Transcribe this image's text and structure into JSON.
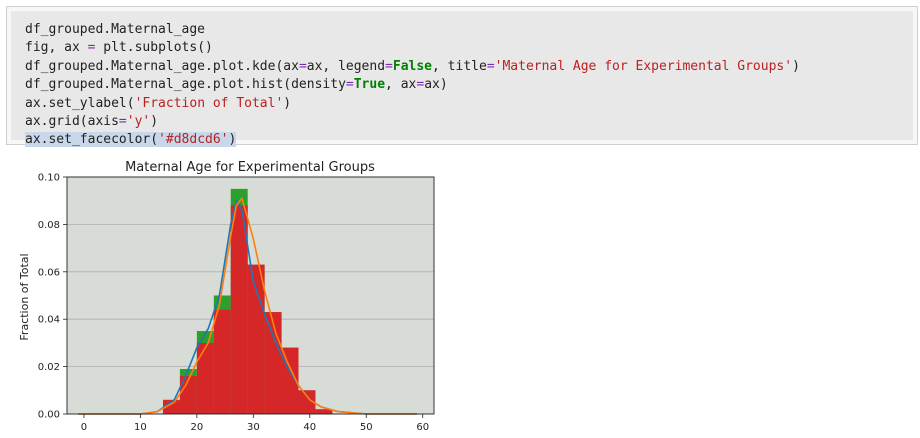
{
  "code_cell": {
    "lines": [
      [
        {
          "t": "df_grouped.Maternal_age",
          "c": "n"
        }
      ],
      [
        {
          "t": "fig, ax ",
          "c": "n"
        },
        {
          "t": "=",
          "c": "o"
        },
        {
          "t": " plt.subplots()",
          "c": "n"
        }
      ],
      [
        {
          "t": "df_grouped.Maternal_age.plot.kde(ax",
          "c": "n"
        },
        {
          "t": "=",
          "c": "o"
        },
        {
          "t": "ax, legend",
          "c": "n"
        },
        {
          "t": "=",
          "c": "o"
        },
        {
          "t": "False",
          "c": "k"
        },
        {
          "t": ", title",
          "c": "n"
        },
        {
          "t": "=",
          "c": "o"
        },
        {
          "t": "'Maternal Age for Experimental Groups'",
          "c": "s"
        },
        {
          "t": ")",
          "c": "n"
        }
      ],
      [
        {
          "t": "df_grouped.Maternal_age.plot.hist(density",
          "c": "n"
        },
        {
          "t": "=",
          "c": "o"
        },
        {
          "t": "True",
          "c": "k"
        },
        {
          "t": ", ax",
          "c": "n"
        },
        {
          "t": "=",
          "c": "o"
        },
        {
          "t": "ax)",
          "c": "n"
        }
      ],
      [
        {
          "t": "ax.set_ylabel(",
          "c": "n"
        },
        {
          "t": "'Fraction of Total'",
          "c": "s"
        },
        {
          "t": ")",
          "c": "n"
        }
      ],
      [
        {
          "t": "ax.grid(axis",
          "c": "n"
        },
        {
          "t": "=",
          "c": "o"
        },
        {
          "t": "'y'",
          "c": "s"
        },
        {
          "t": ")",
          "c": "n"
        }
      ],
      [
        {
          "t": "ax.set_facecolor(",
          "c": "n"
        },
        {
          "t": "'#d8dcd6'",
          "c": "s"
        },
        {
          "t": ")",
          "c": "n"
        }
      ]
    ]
  },
  "chart_data": {
    "type": "bar",
    "title": "Maternal Age for Experimental Groups",
    "xlabel": "",
    "ylabel": "Fraction of Total",
    "xlim": [
      -3,
      62
    ],
    "ylim": [
      0,
      0.1
    ],
    "xticks": [
      0,
      10,
      20,
      30,
      40,
      50,
      60
    ],
    "yticks": [
      "0.00",
      "0.02",
      "0.04",
      "0.06",
      "0.08",
      "0.10"
    ],
    "grid": "y",
    "facecolor": "#d8dcd6",
    "hist_series": [
      {
        "color": "#2ca02c",
        "bins": [
          {
            "x0": 14,
            "x1": 17,
            "y": 0.005
          },
          {
            "x0": 17,
            "x1": 20,
            "y": 0.019
          },
          {
            "x0": 20,
            "x1": 23,
            "y": 0.035
          },
          {
            "x0": 23,
            "x1": 26,
            "y": 0.05
          },
          {
            "x0": 26,
            "x1": 29,
            "y": 0.095
          },
          {
            "x0": 29,
            "x1": 32,
            "y": 0.063
          },
          {
            "x0": 32,
            "x1": 35,
            "y": 0.043
          },
          {
            "x0": 35,
            "x1": 38,
            "y": 0.028
          },
          {
            "x0": 38,
            "x1": 41,
            "y": 0.01
          },
          {
            "x0": 41,
            "x1": 44,
            "y": 0.002
          }
        ]
      },
      {
        "color": "#d62728",
        "bins": [
          {
            "x0": 14,
            "x1": 17,
            "y": 0.006
          },
          {
            "x0": 17,
            "x1": 20,
            "y": 0.016
          },
          {
            "x0": 20,
            "x1": 23,
            "y": 0.03
          },
          {
            "x0": 23,
            "x1": 26,
            "y": 0.044
          },
          {
            "x0": 26,
            "x1": 29,
            "y": 0.088
          },
          {
            "x0": 29,
            "x1": 32,
            "y": 0.063
          },
          {
            "x0": 32,
            "x1": 35,
            "y": 0.043
          },
          {
            "x0": 35,
            "x1": 38,
            "y": 0.028
          },
          {
            "x0": 38,
            "x1": 41,
            "y": 0.01
          },
          {
            "x0": 41,
            "x1": 44,
            "y": 0.002
          }
        ]
      }
    ],
    "kde_series": [
      {
        "color": "#1f77b4",
        "x": [
          -1,
          10,
          13,
          16,
          18,
          20,
          22,
          24,
          26,
          27,
          28,
          30,
          32,
          34,
          36,
          38,
          40,
          42,
          45,
          50,
          59
        ],
        "y": [
          0,
          0,
          0.001,
          0.006,
          0.016,
          0.028,
          0.036,
          0.05,
          0.08,
          0.09,
          0.086,
          0.056,
          0.042,
          0.03,
          0.02,
          0.012,
          0.006,
          0.003,
          0.001,
          0,
          0
        ]
      },
      {
        "color": "#ff7f0e",
        "x": [
          -1,
          10,
          13,
          16,
          18,
          20,
          22,
          24,
          26,
          27,
          28,
          30,
          32,
          34,
          36,
          38,
          40,
          42,
          45,
          50,
          59
        ],
        "y": [
          0,
          0,
          0.001,
          0.005,
          0.012,
          0.022,
          0.03,
          0.046,
          0.075,
          0.088,
          0.091,
          0.074,
          0.052,
          0.034,
          0.022,
          0.012,
          0.006,
          0.003,
          0.001,
          0,
          0
        ]
      }
    ]
  }
}
